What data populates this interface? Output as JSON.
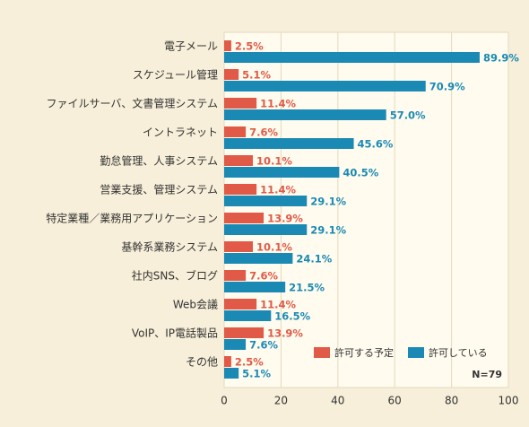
{
  "chart_data": {
    "type": "hbar",
    "categories": [
      "電子メール",
      "スケジュール管理",
      "ファイルサーバ、文書管理システム",
      "イントラネット",
      "勤怠管理、人事システム",
      "営業支援、管理システム",
      "特定業種／業務用アプリケーション",
      "基幹系業務システム",
      "社内SNS、ブログ",
      "Web会議",
      "VoIP、IP電話製品",
      "その他"
    ],
    "series": [
      {
        "name": "許可する予定",
        "color": "#e05a47",
        "values": [
          2.5,
          5.1,
          11.4,
          7.6,
          10.1,
          11.4,
          13.9,
          10.1,
          7.6,
          11.4,
          13.9,
          2.5
        ],
        "value_labels": [
          "2.5%",
          "5.1%",
          "11.4%",
          "7.6%",
          "10.1%",
          "11.4%",
          "13.9%",
          "10.1%",
          "7.6%",
          "11.4%",
          "13.9%",
          "2.5%"
        ]
      },
      {
        "name": "許可している",
        "color": "#1a8ab5",
        "values": [
          89.9,
          70.9,
          57.0,
          45.6,
          40.5,
          29.1,
          29.1,
          24.1,
          21.5,
          16.5,
          7.6,
          5.1
        ],
        "value_labels": [
          "89.9%",
          "70.9%",
          "57.0%",
          "45.6%",
          "40.5%",
          "29.1%",
          "29.1%",
          "24.1%",
          "21.5%",
          "16.5%",
          "7.6%",
          "5.1%"
        ]
      }
    ],
    "xlim": [
      0,
      100
    ],
    "xticks": [
      0,
      20,
      40,
      60,
      80,
      100
    ],
    "grid": true,
    "legend": "lower-right",
    "note": "N=79"
  }
}
